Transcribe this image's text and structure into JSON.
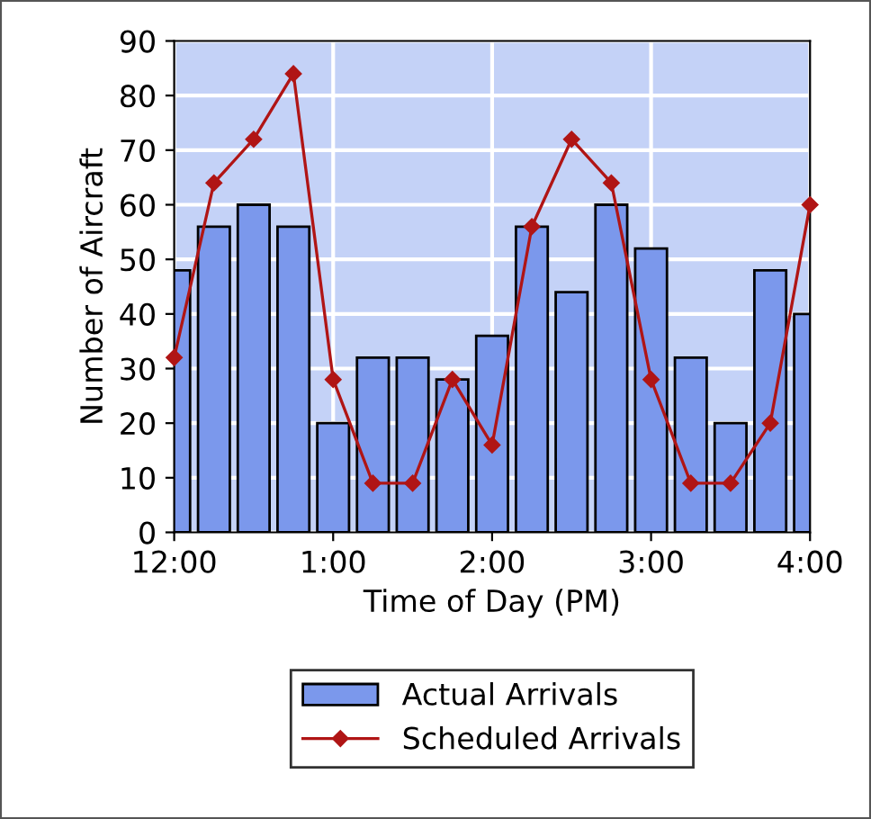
{
  "chart_data": {
    "type": "bar",
    "xlabel": "Time of Day (PM)",
    "ylabel": "Number of Aircraft",
    "categories": [
      "12:00",
      null,
      null,
      null,
      "1:00",
      null,
      null,
      null,
      "2:00",
      null,
      null,
      null,
      "3:00",
      null,
      null,
      null,
      "4:00"
    ],
    "series": [
      {
        "name": "Actual Arrivals",
        "color": "#7b98ec",
        "values": [
          48,
          56,
          60,
          56,
          20,
          32,
          32,
          28,
          36,
          56,
          44,
          60,
          52,
          32,
          20,
          48,
          40
        ]
      },
      {
        "name": "Scheduled Arrivals",
        "type": "line",
        "color": "#b01515",
        "marker": "diamond",
        "values": [
          32,
          64,
          72,
          84,
          28,
          9,
          9,
          28,
          16,
          56,
          72,
          64,
          28,
          9,
          9,
          20,
          60
        ]
      }
    ],
    "ylim": [
      0,
      90
    ],
    "yticks": [
      0,
      10,
      20,
      30,
      40,
      50,
      60,
      70,
      80,
      90
    ],
    "grid": true,
    "legend": "bottom"
  }
}
